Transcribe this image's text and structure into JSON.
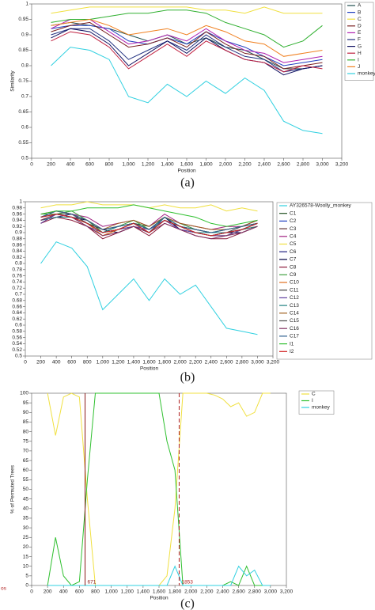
{
  "chart_data": [
    {
      "type": "line",
      "caption": "(a)",
      "xlabel": "Position",
      "ylabel": "Similarity",
      "xlim": [
        0,
        3200
      ],
      "ylim": [
        0.5,
        1
      ],
      "xticks": [
        0,
        200,
        400,
        600,
        800,
        {
          "value": 1000,
          "label": "1,000"
        },
        {
          "value": 1200,
          "label": "1,200"
        },
        {
          "value": 1400,
          "label": "1,400"
        },
        {
          "value": 1600,
          "label": "1,600"
        },
        {
          "value": 1800,
          "label": "1,800"
        },
        {
          "value": 2000,
          "label": "2,000"
        },
        {
          "value": 2200,
          "label": "2,200"
        },
        {
          "value": 2400,
          "label": "2,400"
        },
        {
          "value": 2600,
          "label": "2,600"
        },
        {
          "value": 2800,
          "label": "2,800"
        },
        {
          "value": 3000,
          "label": "3,000"
        },
        {
          "value": 3200,
          "label": "3,200"
        }
      ],
      "yticks": [
        0.5,
        0.55,
        0.6,
        0.65,
        0.7,
        0.75,
        0.8,
        0.85,
        0.9,
        0.95,
        1
      ],
      "x": [
        200,
        400,
        600,
        800,
        1000,
        1200,
        1400,
        1600,
        1800,
        2000,
        2200,
        2400,
        2600,
        2800,
        3000
      ],
      "series": [
        {
          "name": "A",
          "color": "#1f4e4e",
          "values": [
            0.93,
            0.94,
            0.93,
            0.92,
            0.9,
            0.88,
            0.9,
            0.87,
            0.89,
            0.86,
            0.85,
            0.82,
            0.79,
            0.79,
            0.8
          ]
        },
        {
          "name": "B",
          "color": "#1f3fbf",
          "values": [
            0.92,
            0.93,
            0.93,
            0.92,
            0.88,
            0.87,
            0.89,
            0.87,
            0.91,
            0.88,
            0.86,
            0.83,
            0.8,
            0.81,
            0.82
          ]
        },
        {
          "name": "C",
          "color": "#f0e040",
          "values": [
            0.97,
            0.98,
            0.99,
            0.99,
            0.99,
            0.99,
            0.99,
            0.99,
            0.98,
            0.98,
            0.97,
            0.99,
            0.97,
            0.97,
            0.97
          ]
        },
        {
          "name": "D",
          "color": "#7a2020",
          "values": [
            0.91,
            0.93,
            0.94,
            0.9,
            0.86,
            0.87,
            0.89,
            0.86,
            0.91,
            0.87,
            0.84,
            0.83,
            0.79,
            0.8,
            0.81
          ]
        },
        {
          "name": "E",
          "color": "#b020b0",
          "values": [
            0.92,
            0.95,
            0.95,
            0.91,
            0.87,
            0.88,
            0.9,
            0.88,
            0.92,
            0.88,
            0.85,
            0.84,
            0.81,
            0.82,
            0.83
          ]
        },
        {
          "name": "F",
          "color": "#203080",
          "values": [
            0.9,
            0.92,
            0.92,
            0.88,
            0.82,
            0.85,
            0.88,
            0.85,
            0.9,
            0.86,
            0.83,
            0.82,
            0.78,
            0.79,
            0.8
          ]
        },
        {
          "name": "G",
          "color": "#101060",
          "values": [
            0.89,
            0.92,
            0.91,
            0.87,
            0.8,
            0.84,
            0.88,
            0.84,
            0.89,
            0.85,
            0.82,
            0.81,
            0.77,
            0.79,
            0.8
          ]
        },
        {
          "name": "H",
          "color": "#c02040",
          "values": [
            0.88,
            0.91,
            0.9,
            0.86,
            0.79,
            0.83,
            0.87,
            0.83,
            0.88,
            0.85,
            0.82,
            0.81,
            0.78,
            0.8,
            0.79
          ]
        },
        {
          "name": "I",
          "color": "#30b030",
          "values": [
            0.94,
            0.95,
            0.95,
            0.96,
            0.97,
            0.97,
            0.98,
            0.98,
            0.97,
            0.94,
            0.92,
            0.9,
            0.86,
            0.88,
            0.93
          ]
        },
        {
          "name": "J",
          "color": "#f08020",
          "values": [
            0.93,
            0.94,
            0.95,
            0.93,
            0.9,
            0.91,
            0.92,
            0.9,
            0.93,
            0.91,
            0.88,
            0.87,
            0.83,
            0.84,
            0.85
          ]
        },
        {
          "name": "monkey",
          "color": "#30d0e0",
          "values": [
            0.8,
            0.86,
            0.85,
            0.82,
            0.7,
            0.68,
            0.74,
            0.7,
            0.75,
            0.71,
            0.76,
            0.72,
            0.62,
            0.59,
            0.58
          ]
        }
      ]
    },
    {
      "type": "line",
      "caption": "(b)",
      "xlabel": "Position",
      "xlim": [
        0,
        3200
      ],
      "ylim": [
        0.5,
        1
      ],
      "xticks": [
        0,
        200,
        400,
        600,
        800,
        {
          "value": 1000,
          "label": "1,000"
        },
        {
          "value": 1200,
          "label": "1,200"
        },
        {
          "value": 1400,
          "label": "1,400"
        },
        {
          "value": 1600,
          "label": "1,600"
        },
        {
          "value": 1800,
          "label": "1,800"
        },
        {
          "value": 2000,
          "label": "2,000"
        },
        {
          "value": 2200,
          "label": "2,200"
        },
        {
          "value": 2400,
          "label": "2,400"
        },
        {
          "value": 2600,
          "label": "2,600"
        },
        {
          "value": 2800,
          "label": "2,800"
        },
        {
          "value": 3000,
          "label": "3,000"
        },
        {
          "value": 3200,
          "label": "3,200"
        }
      ],
      "yticks": [
        0.5,
        0.52,
        0.54,
        0.56,
        0.58,
        0.6,
        0.62,
        0.64,
        0.66,
        0.68,
        0.7,
        0.72,
        0.74,
        0.76,
        0.78,
        0.8,
        0.82,
        0.84,
        0.86,
        0.88,
        0.9,
        0.92,
        0.94,
        0.96,
        0.98,
        1
      ],
      "x": [
        200,
        400,
        600,
        800,
        1000,
        1200,
        1400,
        1600,
        1800,
        2000,
        2200,
        2400,
        2600,
        2800,
        3000
      ],
      "series": [
        {
          "name": "AY326578-Woolly_monkey",
          "color": "#30d0e0",
          "values": [
            0.8,
            0.87,
            0.85,
            0.79,
            0.65,
            0.7,
            0.75,
            0.68,
            0.75,
            0.7,
            0.73,
            0.66,
            0.59,
            0.58,
            0.57
          ]
        },
        {
          "name": "C1",
          "color": "#205020",
          "values": [
            0.94,
            0.96,
            0.95,
            0.93,
            0.91,
            0.92,
            0.93,
            0.92,
            0.95,
            0.92,
            0.91,
            0.9,
            0.9,
            0.91,
            0.93
          ]
        },
        {
          "name": "C2",
          "color": "#2040c0",
          "values": [
            0.95,
            0.97,
            0.96,
            0.94,
            0.9,
            0.91,
            0.93,
            0.91,
            0.95,
            0.93,
            0.91,
            0.9,
            0.91,
            0.92,
            0.94
          ]
        },
        {
          "name": "C3",
          "color": "#603030",
          "values": [
            0.93,
            0.96,
            0.95,
            0.92,
            0.89,
            0.91,
            0.92,
            0.9,
            0.94,
            0.92,
            0.9,
            0.89,
            0.89,
            0.91,
            0.92
          ]
        },
        {
          "name": "C4",
          "color": "#a02080",
          "values": [
            0.96,
            0.97,
            0.96,
            0.95,
            0.92,
            0.93,
            0.94,
            0.92,
            0.96,
            0.93,
            0.92,
            0.91,
            0.92,
            0.92,
            0.94
          ]
        },
        {
          "name": "C5",
          "color": "#f0e040",
          "values": [
            0.98,
            0.99,
            0.99,
            1,
            0.99,
            0.99,
            0.99,
            0.98,
            0.99,
            0.98,
            0.98,
            0.99,
            0.97,
            0.98,
            0.97
          ]
        },
        {
          "name": "C6",
          "color": "#202080",
          "values": [
            0.94,
            0.95,
            0.96,
            0.93,
            0.9,
            0.92,
            0.93,
            0.91,
            0.94,
            0.92,
            0.9,
            0.9,
            0.9,
            0.91,
            0.93
          ]
        },
        {
          "name": "C7",
          "color": "#000040",
          "values": [
            0.95,
            0.96,
            0.95,
            0.94,
            0.91,
            0.9,
            0.92,
            0.9,
            0.95,
            0.91,
            0.9,
            0.89,
            0.9,
            0.9,
            0.92
          ]
        },
        {
          "name": "C8",
          "color": "#8b1a3a",
          "values": [
            0.93,
            0.95,
            0.94,
            0.92,
            0.88,
            0.9,
            0.92,
            0.89,
            0.93,
            0.91,
            0.89,
            0.88,
            0.88,
            0.9,
            0.92
          ]
        },
        {
          "name": "C9",
          "color": "#40a040",
          "values": [
            0.96,
            0.96,
            0.97,
            0.94,
            0.9,
            0.92,
            0.94,
            0.91,
            0.95,
            0.93,
            0.91,
            0.9,
            0.91,
            0.92,
            0.93
          ]
        },
        {
          "name": "C10",
          "color": "#e07020",
          "values": [
            0.94,
            0.96,
            0.95,
            0.93,
            0.89,
            0.91,
            0.93,
            0.9,
            0.94,
            0.92,
            0.9,
            0.89,
            0.89,
            0.91,
            0.92
          ]
        },
        {
          "name": "C11",
          "color": "#404040",
          "values": [
            0.95,
            0.97,
            0.96,
            0.93,
            0.91,
            0.92,
            0.93,
            0.91,
            0.94,
            0.92,
            0.91,
            0.9,
            0.9,
            0.92,
            0.93
          ]
        },
        {
          "name": "C12",
          "color": "#6040a0",
          "values": [
            0.93,
            0.96,
            0.95,
            0.92,
            0.9,
            0.91,
            0.92,
            0.91,
            0.94,
            0.91,
            0.9,
            0.89,
            0.89,
            0.91,
            0.93
          ]
        },
        {
          "name": "C13",
          "color": "#208080",
          "values": [
            0.94,
            0.95,
            0.95,
            0.93,
            0.9,
            0.92,
            0.93,
            0.9,
            0.95,
            0.92,
            0.9,
            0.9,
            0.9,
            0.91,
            0.92
          ]
        },
        {
          "name": "C14",
          "color": "#a06020",
          "values": [
            0.96,
            0.97,
            0.96,
            0.94,
            0.91,
            0.93,
            0.94,
            0.92,
            0.95,
            0.93,
            0.92,
            0.91,
            0.91,
            0.92,
            0.94
          ]
        },
        {
          "name": "C15",
          "color": "#505050",
          "values": [
            0.95,
            0.96,
            0.96,
            0.93,
            0.9,
            0.91,
            0.93,
            0.9,
            0.94,
            0.92,
            0.9,
            0.89,
            0.9,
            0.91,
            0.93
          ]
        },
        {
          "name": "C16",
          "color": "#803060",
          "values": [
            0.94,
            0.96,
            0.95,
            0.92,
            0.89,
            0.9,
            0.92,
            0.9,
            0.93,
            0.91,
            0.89,
            0.88,
            0.89,
            0.9,
            0.92
          ]
        },
        {
          "name": "C17",
          "color": "#306090",
          "values": [
            0.95,
            0.97,
            0.96,
            0.94,
            0.91,
            0.92,
            0.93,
            0.91,
            0.95,
            0.92,
            0.91,
            0.9,
            0.91,
            0.92,
            0.93
          ]
        },
        {
          "name": "I1",
          "color": "#30c030",
          "values": [
            0.96,
            0.97,
            0.97,
            0.98,
            0.98,
            0.98,
            0.99,
            0.98,
            0.97,
            0.96,
            0.95,
            0.93,
            0.92,
            0.93,
            0.94
          ]
        },
        {
          "name": "I2",
          "color": "#d02020",
          "values": [
            0.95,
            0.96,
            0.95,
            0.93,
            0.9,
            0.91,
            0.93,
            0.9,
            0.94,
            0.92,
            0.9,
            0.89,
            0.9,
            0.91,
            0.93
          ]
        }
      ]
    },
    {
      "type": "line",
      "caption": "(c)",
      "xlabel": "Position",
      "ylabel": "% of Permuted Trees",
      "annotation": "os",
      "xlim": [
        0,
        3200
      ],
      "ylim": [
        0,
        100
      ],
      "xticks": [
        0,
        200,
        400,
        600,
        800,
        {
          "value": 1000,
          "label": "1,000"
        },
        {
          "value": 1200,
          "label": "1,200"
        },
        {
          "value": 1400,
          "label": "1,400"
        },
        {
          "value": 1600,
          "label": "1,600"
        },
        {
          "value": 1800,
          "label": "1,800"
        },
        {
          "value": 2000,
          "label": "2,000"
        },
        {
          "value": 2200,
          "label": "2,200"
        },
        {
          "value": 2400,
          "label": "2,400"
        },
        {
          "value": 2600,
          "label": "2,600"
        },
        {
          "value": 2800,
          "label": "2,800"
        },
        {
          "value": 3000,
          "label": "3,000"
        },
        {
          "value": 3200,
          "label": "3,200"
        }
      ],
      "yticks": [
        0,
        5,
        10,
        15,
        20,
        25,
        30,
        35,
        40,
        45,
        50,
        55,
        60,
        65,
        70,
        75,
        80,
        85,
        90,
        95,
        100
      ],
      "x": [
        200,
        300,
        400,
        500,
        600,
        700,
        800,
        900,
        1000,
        1100,
        1200,
        1300,
        1400,
        1500,
        1600,
        1700,
        1800,
        1900,
        2000,
        2100,
        2200,
        2300,
        2400,
        2500,
        2600,
        2700,
        2800,
        2900,
        3000
      ],
      "vlines": [
        {
          "value": 671,
          "color": "#8b1a1a",
          "dashed": false
        },
        {
          "value": 1853,
          "color": "#b02020",
          "dashed": true
        }
      ],
      "series": [
        {
          "name": "C",
          "color": "#f0e040",
          "values": [
            100,
            78,
            98,
            100,
            98,
            45,
            0,
            0,
            0,
            0,
            0,
            0,
            0,
            0,
            0,
            5,
            40,
            100,
            100,
            100,
            100,
            99,
            97,
            93,
            95,
            88,
            90,
            100,
            100
          ]
        },
        {
          "name": "I",
          "color": "#30c030",
          "values": [
            0,
            25,
            5,
            0,
            2,
            55,
            100,
            100,
            100,
            100,
            100,
            100,
            100,
            100,
            100,
            75,
            60,
            0,
            0,
            0,
            0,
            0,
            0,
            2,
            0,
            10,
            0,
            0,
            0
          ]
        },
        {
          "name": "monkey",
          "color": "#30d0e0",
          "values": [
            0,
            0,
            0,
            0,
            0,
            0,
            0,
            0,
            0,
            0,
            0,
            0,
            0,
            0,
            0,
            0,
            10,
            0,
            0,
            0,
            0,
            0,
            0,
            0,
            10,
            5,
            8,
            0,
            0
          ]
        }
      ]
    }
  ]
}
